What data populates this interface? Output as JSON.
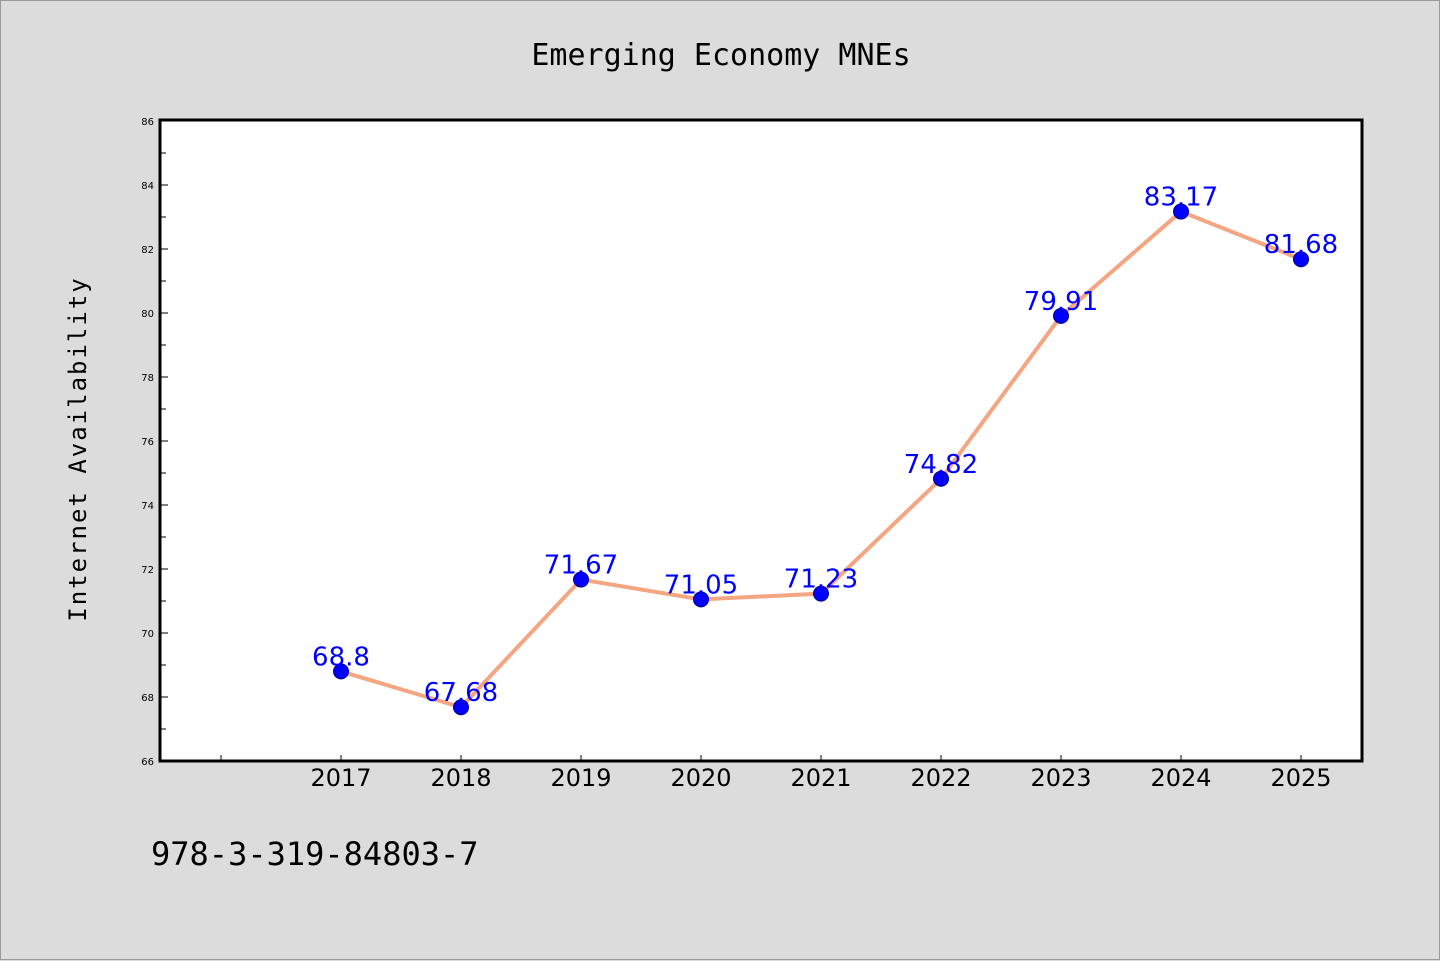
{
  "chart_data": {
    "type": "line",
    "title": "Emerging Economy MNEs",
    "xlabel": "",
    "ylabel": "Internet Availability",
    "categories": [
      "2017",
      "2018",
      "2019",
      "2020",
      "2021",
      "2022",
      "2023",
      "2024",
      "2025"
    ],
    "series": [
      {
        "values": [
          68.8,
          67.68,
          71.67,
          71.05,
          71.23,
          74.82,
          79.91,
          83.17,
          81.68
        ],
        "labels": [
          "68.8",
          "67.68",
          "71.67",
          "71.05",
          "71.23",
          "74.82",
          "79.91",
          "83.17",
          "81.68"
        ],
        "line_color": "#f4a582",
        "marker_color": "#0000ff"
      }
    ],
    "ylim": [
      66,
      86
    ],
    "yticks": [
      "66",
      "68",
      "70",
      "72",
      "74",
      "76",
      "78",
      "80",
      "82",
      "84",
      "86"
    ],
    "grid": false,
    "data_label_color": "#0000ff"
  },
  "footnote": "978-3-319-84803-7",
  "colors": {
    "background": "#dcdcdc",
    "plot_background": "#ffffff"
  }
}
